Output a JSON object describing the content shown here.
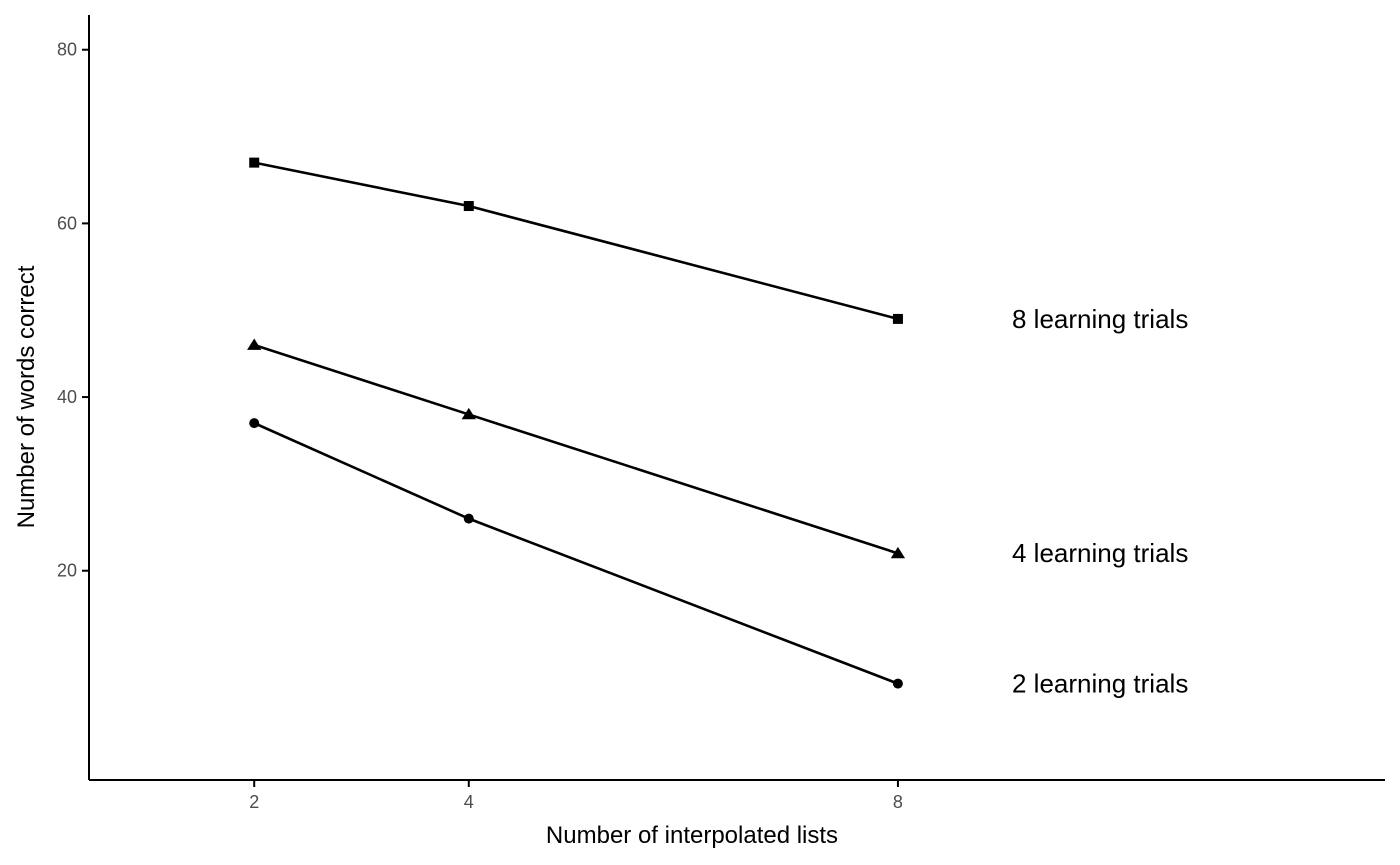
{
  "chart_data": {
    "type": "line",
    "title": "",
    "xlabel": "Number of interpolated lists",
    "ylabel": "Number of words correct",
    "x": [
      2,
      4,
      8
    ],
    "xlim": [
      0.46,
      12.54
    ],
    "ylim": [
      -4.1,
      84
    ],
    "xticks": [
      2,
      4,
      8
    ],
    "yticks": [
      20,
      40,
      60,
      80
    ],
    "grid": false,
    "legend": "none",
    "colors": {
      "line": "#000000",
      "axis": "#000000",
      "tick_label": "#4d4d4d"
    },
    "series": [
      {
        "label": "8 learning trials",
        "marker": "square",
        "values": [
          67,
          62,
          49
        ]
      },
      {
        "label": "4 learning trials",
        "marker": "triangle",
        "values": [
          46,
          38,
          22
        ]
      },
      {
        "label": "2 learning trials",
        "marker": "circle",
        "values": [
          37,
          26,
          7
        ]
      }
    ]
  }
}
